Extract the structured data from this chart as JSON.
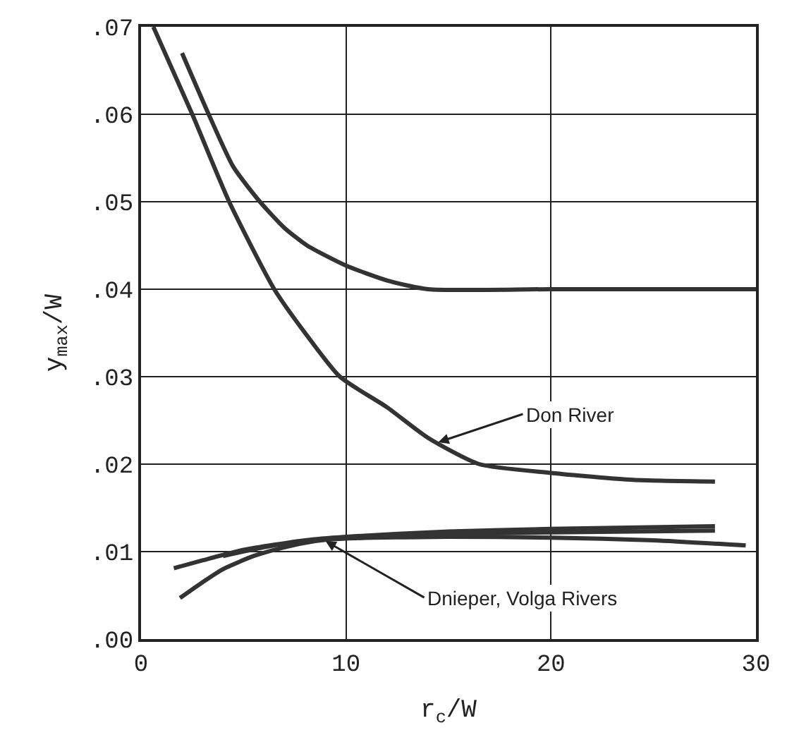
{
  "chart_data": {
    "type": "line",
    "xlabel": "r$_{c}$/W",
    "ylabel": "y$_{max}$/W",
    "xlim": [
      0,
      30
    ],
    "xticks": [
      0,
      10,
      20,
      30
    ],
    "ylim": [
      0,
      0.07
    ],
    "yticks": [
      {
        "value": 0,
        "label": ".00"
      },
      {
        "value": 0.01,
        "label": ".01"
      },
      {
        "value": 0.02,
        "label": ".02"
      },
      {
        "value": 0.03,
        "label": ".03"
      },
      {
        "value": 0.04,
        "label": ".04"
      },
      {
        "value": 0.05,
        "label": ".05"
      },
      {
        "value": 0.06,
        "label": ".06"
      },
      {
        "value": 0.07,
        "label": ".07"
      }
    ],
    "grid": true,
    "marker": "none",
    "line_style": "solid",
    "series": [
      {
        "color": "#333333",
        "x": [
          2.0,
          3.3,
          4.5,
          5.8,
          7.0,
          8.1,
          10,
          12,
          14,
          20,
          30
        ],
        "values": [
          0.067,
          0.06,
          0.054,
          0.05,
          0.047,
          0.045,
          0.0427,
          0.041,
          0.04,
          0.04,
          0.04
        ]
      },
      {
        "color": "#333333",
        "x": [
          0.6,
          2.5,
          4.3,
          6.5,
          8,
          9.7,
          12,
          14,
          16.5,
          20,
          24,
          28
        ],
        "values": [
          0.07,
          0.06,
          0.05,
          0.04,
          0.035,
          0.03,
          0.0265,
          0.023,
          0.02,
          0.019,
          0.0182,
          0.018
        ]
      },
      {
        "color": "#333333",
        "x": [
          1.6,
          3,
          5,
          8,
          10,
          15,
          20,
          28
        ],
        "values": [
          0.0081,
          0.009,
          0.0102,
          0.0113,
          0.0117,
          0.0123,
          0.0126,
          0.0129
        ]
      },
      {
        "color": "#333333",
        "x": [
          1.9,
          3,
          4,
          5.5,
          7,
          8.5,
          10,
          15,
          20,
          28
        ],
        "values": [
          0.0047,
          0.0065,
          0.008,
          0.0095,
          0.0105,
          0.0112,
          0.0116,
          0.012,
          0.0122,
          0.0124
        ]
      },
      {
        "color": "#333333",
        "x": [
          4,
          6,
          8,
          10,
          15,
          20,
          25,
          29.5
        ],
        "values": [
          0.0095,
          0.0105,
          0.0112,
          0.0115,
          0.0117,
          0.0116,
          0.0113,
          0.0107
        ]
      }
    ],
    "annotations": [
      {
        "text": "Don River",
        "x": 14.5,
        "y": 0.0225
      },
      {
        "text": "Dnieper, Volga Rivers",
        "x": 9,
        "y": 0.0112
      }
    ]
  }
}
